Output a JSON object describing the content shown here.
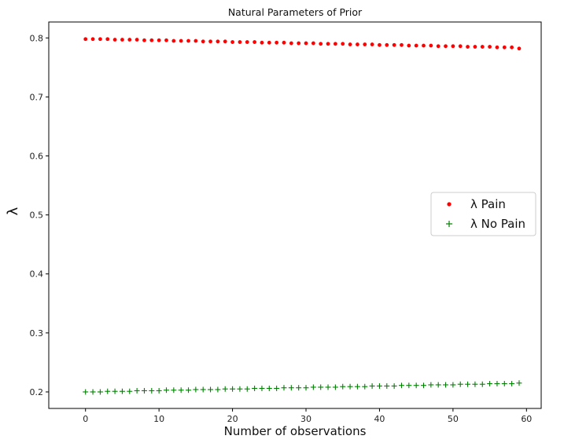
{
  "chart_data": {
    "type": "scatter",
    "title": "Natural Parameters of Prior",
    "xlabel": "Number of observations",
    "ylabel": "λ",
    "xlim": [
      -5,
      62
    ],
    "ylim": [
      0.172,
      0.827
    ],
    "xticks": [
      "0",
      "10",
      "20",
      "30",
      "40",
      "50",
      "60"
    ],
    "yticks": [
      "0.2",
      "0.3",
      "0.4",
      "0.5",
      "0.6",
      "0.7",
      "0.8"
    ],
    "grid": false,
    "legend_position": "center-right",
    "x": [
      0,
      1,
      2,
      3,
      4,
      5,
      6,
      7,
      8,
      9,
      10,
      11,
      12,
      13,
      14,
      15,
      16,
      17,
      18,
      19,
      20,
      21,
      22,
      23,
      24,
      25,
      26,
      27,
      28,
      29,
      30,
      31,
      32,
      33,
      34,
      35,
      36,
      37,
      38,
      39,
      40,
      41,
      42,
      43,
      44,
      45,
      46,
      47,
      48,
      49,
      50,
      51,
      52,
      53,
      54,
      55,
      56,
      57,
      58,
      59
    ],
    "series": [
      {
        "name": "λ Pain",
        "marker": "dot",
        "color": "#ff0000",
        "values": [
          0.798,
          0.798,
          0.798,
          0.798,
          0.797,
          0.797,
          0.797,
          0.797,
          0.796,
          0.796,
          0.796,
          0.796,
          0.795,
          0.795,
          0.795,
          0.795,
          0.794,
          0.794,
          0.794,
          0.794,
          0.793,
          0.793,
          0.793,
          0.793,
          0.792,
          0.792,
          0.792,
          0.792,
          0.791,
          0.791,
          0.791,
          0.791,
          0.79,
          0.79,
          0.79,
          0.79,
          0.789,
          0.789,
          0.789,
          0.789,
          0.788,
          0.788,
          0.788,
          0.788,
          0.787,
          0.787,
          0.787,
          0.787,
          0.786,
          0.786,
          0.786,
          0.786,
          0.785,
          0.785,
          0.785,
          0.785,
          0.784,
          0.784,
          0.784,
          0.782
        ]
      },
      {
        "name": "λ No Pain",
        "marker": "plus",
        "color": "#008000",
        "values": [
          0.2,
          0.2,
          0.2,
          0.201,
          0.201,
          0.201,
          0.201,
          0.202,
          0.202,
          0.202,
          0.202,
          0.203,
          0.203,
          0.203,
          0.203,
          0.204,
          0.204,
          0.204,
          0.204,
          0.205,
          0.205,
          0.205,
          0.205,
          0.206,
          0.206,
          0.206,
          0.206,
          0.207,
          0.207,
          0.207,
          0.207,
          0.208,
          0.208,
          0.208,
          0.208,
          0.209,
          0.209,
          0.209,
          0.209,
          0.21,
          0.21,
          0.21,
          0.21,
          0.211,
          0.211,
          0.211,
          0.211,
          0.212,
          0.212,
          0.212,
          0.212,
          0.213,
          0.213,
          0.213,
          0.213,
          0.214,
          0.214,
          0.214,
          0.214,
          0.215
        ]
      }
    ],
    "legend": [
      {
        "label": "λ Pain",
        "marker": "dot",
        "color": "#ff0000"
      },
      {
        "label": "λ No Pain",
        "marker": "plus",
        "color": "#008000"
      }
    ]
  }
}
